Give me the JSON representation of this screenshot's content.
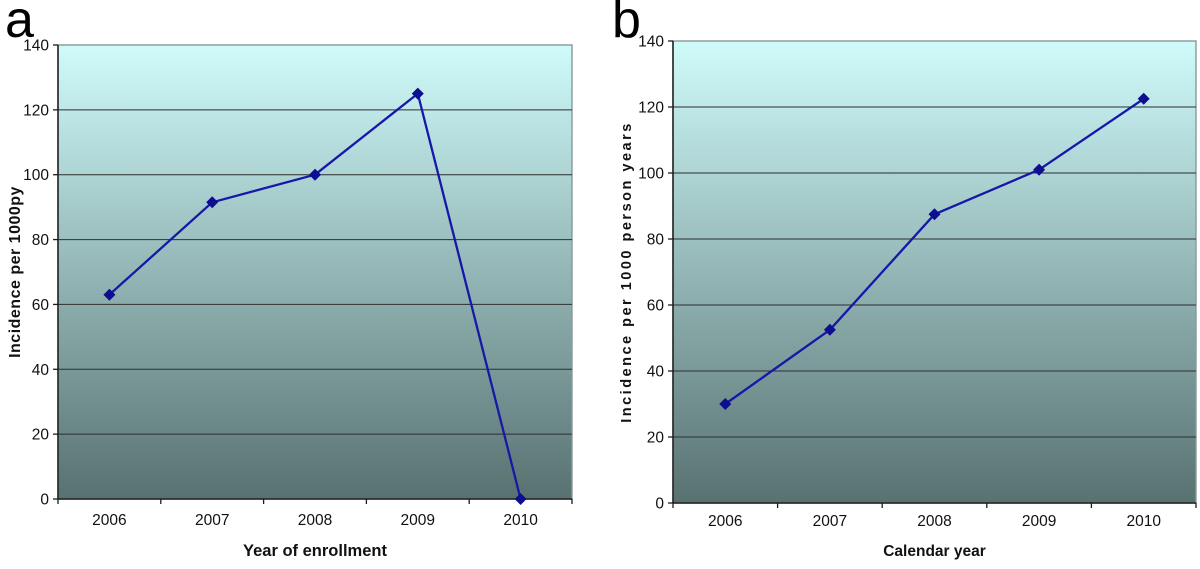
{
  "figure": {
    "background": "#ffffff"
  },
  "panels": [
    {
      "label": "a"
    },
    {
      "label": "b"
    }
  ],
  "chart_data": [
    {
      "type": "line",
      "panel_label": "a",
      "title": "",
      "categories": [
        "2006",
        "2007",
        "2008",
        "2009",
        "2010"
      ],
      "values": [
        63,
        91.5,
        100,
        125,
        0
      ],
      "xlabel": "Year of enrollment",
      "ylabel": "Incidence per 1000py",
      "ylim": [
        0,
        140
      ],
      "yticks": [
        0,
        20,
        40,
        60,
        80,
        100,
        120,
        140
      ],
      "grid": true,
      "legend": "none",
      "marker": "diamond",
      "line_color": "#1717a8",
      "marker_color": "#0e0e90",
      "gridline_color": "#2e2e2e",
      "border_color": "#8a9898",
      "axis_color": "#1c1c1c",
      "plot_bg_top": "#d0fbfb",
      "plot_bg_bottom": "#587171"
    },
    {
      "type": "line",
      "panel_label": "b",
      "title": "",
      "categories": [
        "2006",
        "2007",
        "2008",
        "2009",
        "2010"
      ],
      "values": [
        30,
        52.5,
        87.5,
        101,
        122.5
      ],
      "xlabel": "Calendar year",
      "ylabel": "Incidence per 1000 person years",
      "ylim": [
        0,
        140
      ],
      "yticks": [
        0,
        20,
        40,
        60,
        80,
        100,
        120,
        140
      ],
      "grid": true,
      "legend": "none",
      "marker": "diamond",
      "line_color": "#1717a8",
      "marker_color": "#0e0e90",
      "gridline_color": "#2e2e2e",
      "border_color": "#8a9898",
      "axis_color": "#1c1c1c",
      "plot_bg_top": "#d0fbfb",
      "plot_bg_bottom": "#587171"
    }
  ]
}
